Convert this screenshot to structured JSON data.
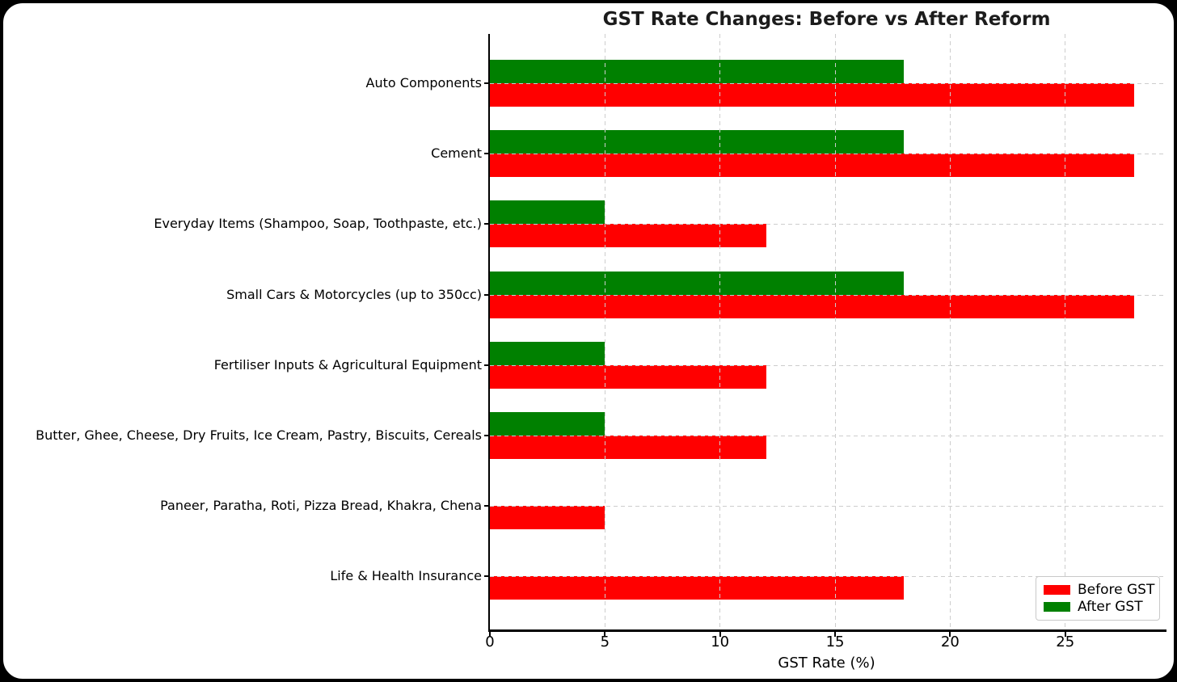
{
  "chart_data": {
    "type": "bar",
    "orientation": "horizontal",
    "title": "GST Rate Changes: Before vs After Reform",
    "xlabel": "GST Rate (%)",
    "ylabel": "",
    "categories": [
      "Auto Components",
      "Cement",
      "Everyday Items (Shampoo, Soap, Toothpaste, etc.)",
      "Small Cars & Motorcycles (up to 350cc)",
      "Fertiliser Inputs & Agricultural Equipment",
      "Butter, Ghee, Cheese, Dry Fruits, Ice Cream, Pastry, Biscuits, Cereals",
      "Paneer, Paratha, Roti, Pizza Bread, Khakra, Chena",
      "Life & Health Insurance"
    ],
    "series": [
      {
        "name": "Before GST",
        "color": "#ff0000",
        "values": [
          28,
          28,
          12,
          28,
          12,
          12,
          5,
          18
        ]
      },
      {
        "name": "After GST",
        "color": "#008000",
        "values": [
          18,
          18,
          5,
          18,
          5,
          5,
          0,
          0
        ]
      }
    ],
    "xticks": [
      0,
      5,
      10,
      15,
      20,
      25
    ],
    "xlim": [
      0,
      29.4
    ],
    "grid": {
      "style": "dashed",
      "color": "#cdcdcd",
      "axes": "both",
      "above_bars": true
    },
    "legend": {
      "position": "lower-right",
      "entries": [
        "Before GST",
        "After GST"
      ]
    },
    "frame": {
      "background": "#ffffff",
      "border_color": "#000000"
    }
  }
}
